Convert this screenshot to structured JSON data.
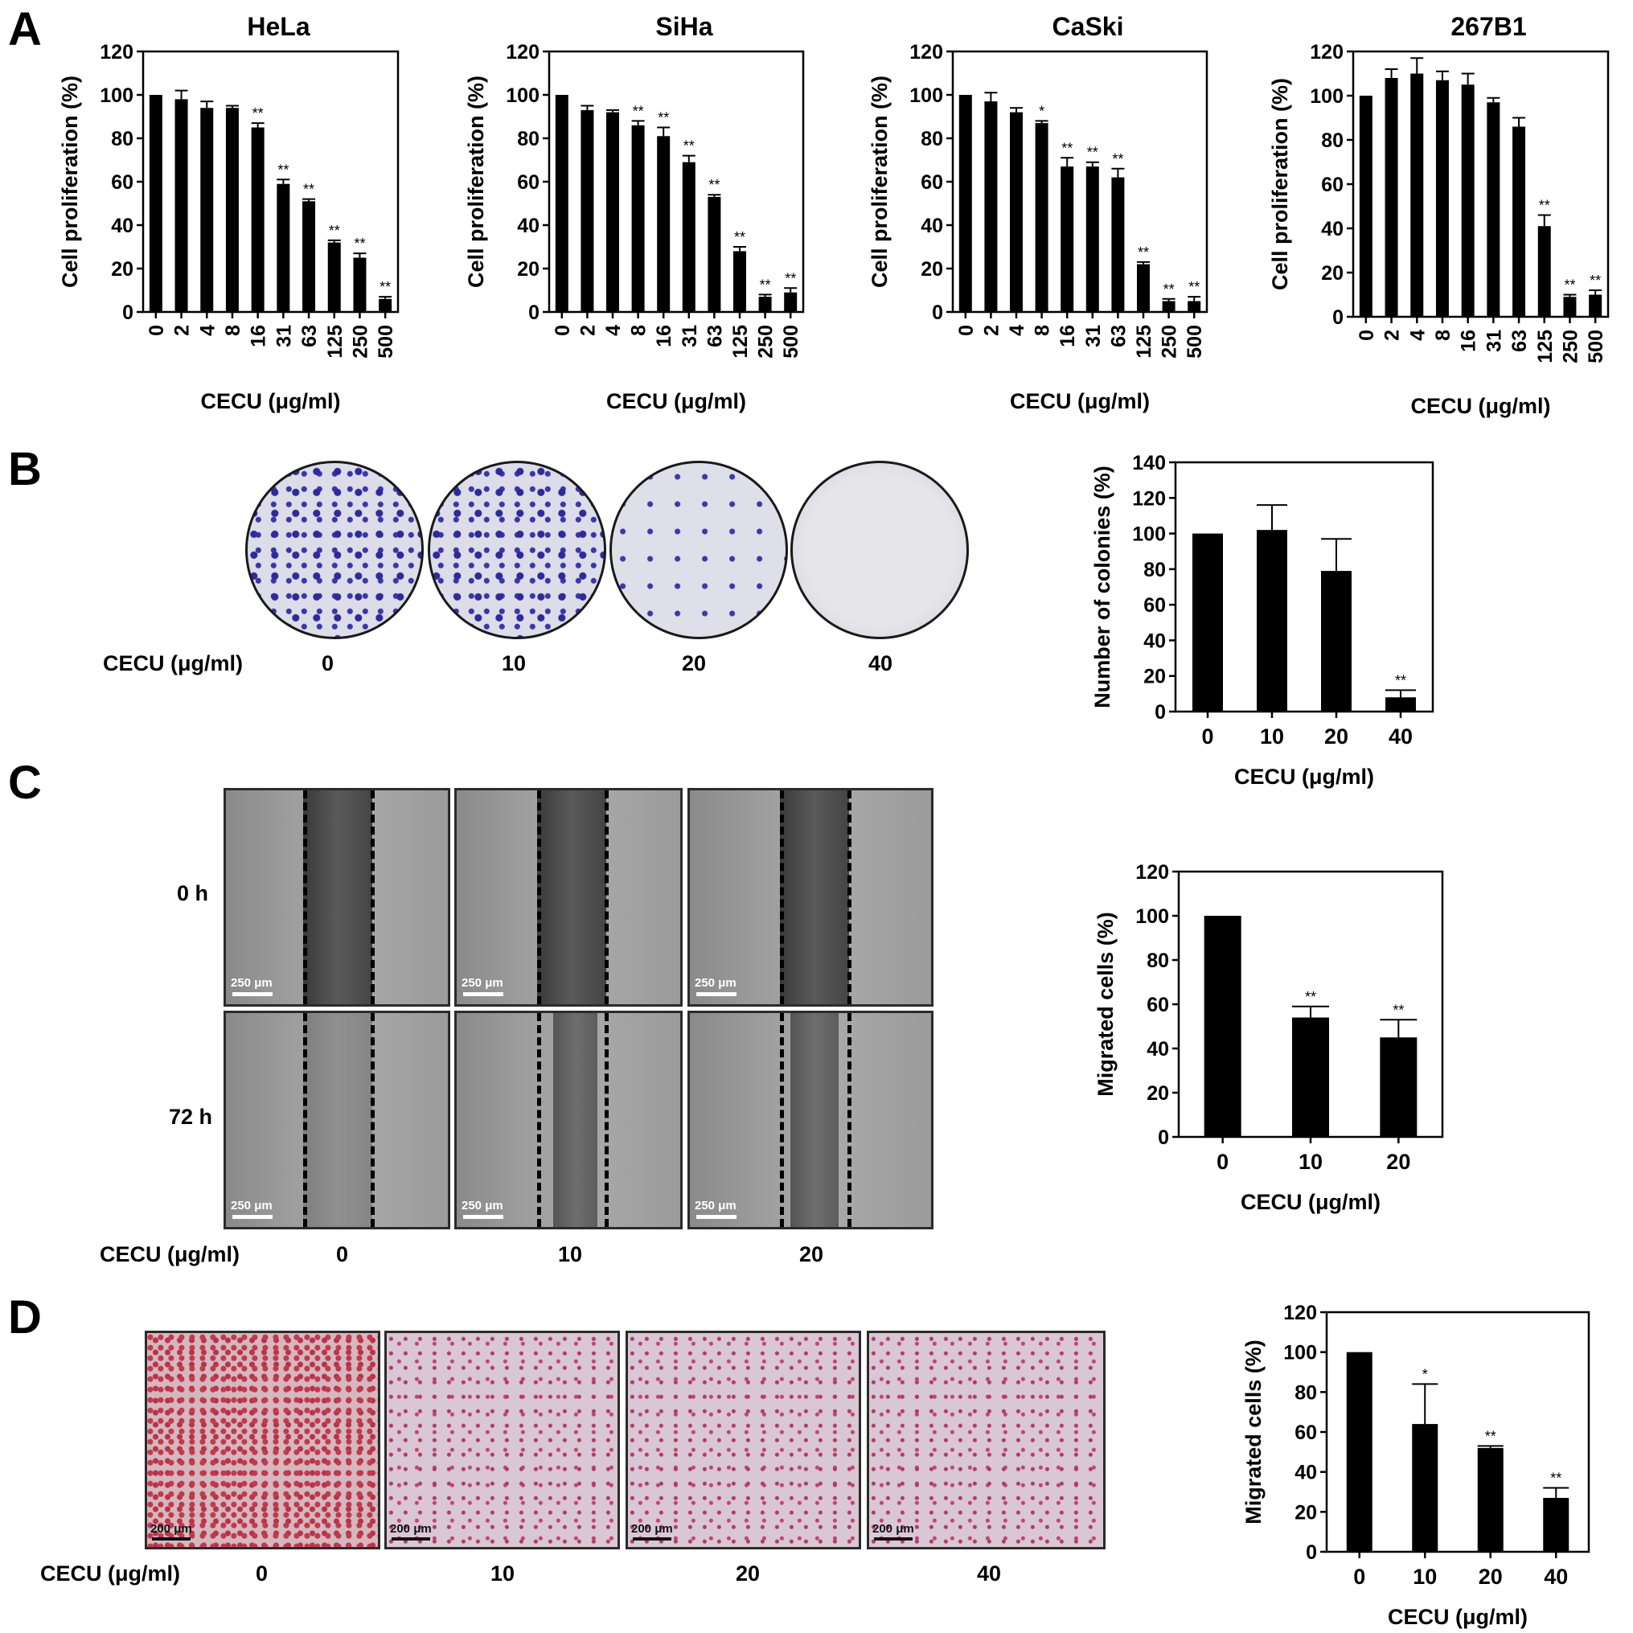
{
  "panels": {
    "a": "A",
    "b": "B",
    "c": "C",
    "d": "D"
  },
  "common": {
    "xlabel": "CECU (μg/ml)"
  },
  "panel_b": {
    "dose_label": "CECU (μg/ml)",
    "doses": [
      "0",
      "10",
      "20",
      "40"
    ]
  },
  "panel_c": {
    "row_labels": [
      "0 h",
      "72 h"
    ],
    "dose_label": "CECU (μg/ml)",
    "doses": [
      "0",
      "10",
      "20"
    ],
    "scale": "250 μm"
  },
  "panel_d": {
    "dose_label": "CECU (μg/ml)",
    "doses": [
      "0",
      "10",
      "20",
      "40"
    ],
    "scale": "200 μm"
  },
  "chart_data": [
    {
      "id": "hela",
      "type": "bar",
      "title": "HeLa",
      "xlabel": "CECU (μg/ml)",
      "ylabel": "Cell proliferation (%)",
      "categories": [
        "0",
        "2",
        "4",
        "8",
        "16",
        "31",
        "63",
        "125",
        "250",
        "500"
      ],
      "values": [
        100,
        98,
        94,
        94,
        85,
        59,
        51,
        32,
        25,
        6
      ],
      "errors": [
        0,
        4,
        3,
        1,
        2,
        2,
        1,
        1,
        2,
        1
      ],
      "sig": [
        "",
        "",
        "",
        "",
        "**",
        "**",
        "**",
        "**",
        "**",
        "**"
      ],
      "ylim": [
        0,
        120
      ]
    },
    {
      "id": "siha",
      "type": "bar",
      "title": "SiHa",
      "xlabel": "CECU (μg/ml)",
      "ylabel": "Cell proliferation (%)",
      "categories": [
        "0",
        "2",
        "4",
        "8",
        "16",
        "31",
        "63",
        "125",
        "250",
        "500"
      ],
      "values": [
        100,
        93,
        92,
        86,
        81,
        69,
        53,
        28,
        7,
        9
      ],
      "errors": [
        0,
        2,
        1,
        2,
        4,
        3,
        1,
        2,
        1,
        2
      ],
      "sig": [
        "",
        "",
        "",
        "**",
        "**",
        "**",
        "**",
        "**",
        "**",
        "**"
      ],
      "ylim": [
        0,
        120
      ]
    },
    {
      "id": "caski",
      "type": "bar",
      "title": "CaSki",
      "xlabel": "CECU (μg/ml)",
      "ylabel": "Cell proliferation (%)",
      "categories": [
        "0",
        "2",
        "4",
        "8",
        "16",
        "31",
        "63",
        "125",
        "250",
        "500"
      ],
      "values": [
        100,
        97,
        92,
        87,
        67,
        67,
        62,
        22,
        5,
        5
      ],
      "errors": [
        0,
        4,
        2,
        1,
        4,
        2,
        4,
        1,
        1,
        2
      ],
      "sig": [
        "",
        "",
        "",
        "*",
        "**",
        "**",
        "**",
        "**",
        "**",
        "**"
      ],
      "ylim": [
        0,
        120
      ]
    },
    {
      "id": "b1",
      "type": "bar",
      "title": "267B1",
      "xlabel": "CECU (μg/ml)",
      "ylabel": "Cell proliferation (%)",
      "categories": [
        "0",
        "2",
        "4",
        "8",
        "16",
        "31",
        "63",
        "125",
        "250",
        "500"
      ],
      "values": [
        100,
        108,
        110,
        107,
        105,
        97,
        86,
        41,
        9,
        10
      ],
      "errors": [
        0,
        4,
        7,
        4,
        5,
        2,
        4,
        5,
        1,
        2
      ],
      "sig": [
        "",
        "",
        "",
        "",
        "",
        "",
        "",
        "**",
        "**",
        "**"
      ],
      "ylim": [
        0,
        120
      ]
    },
    {
      "id": "colonies",
      "type": "bar",
      "title": "",
      "xlabel": "CECU (μg/ml)",
      "ylabel": "Number of colonies (%)",
      "categories": [
        "0",
        "10",
        "20",
        "40"
      ],
      "values": [
        100,
        102,
        79,
        8
      ],
      "errors": [
        0,
        14,
        18,
        4
      ],
      "sig": [
        "",
        "",
        "",
        "**"
      ],
      "ylim": [
        0,
        140
      ]
    },
    {
      "id": "wound",
      "type": "bar",
      "title": "",
      "xlabel": "CECU (μg/ml)",
      "ylabel": "Migrated cells (%)",
      "categories": [
        "0",
        "10",
        "20"
      ],
      "values": [
        100,
        54,
        45
      ],
      "errors": [
        0,
        5,
        8
      ],
      "sig": [
        "",
        "**",
        "**"
      ],
      "ylim": [
        0,
        120
      ]
    },
    {
      "id": "transwell",
      "type": "bar",
      "title": "",
      "xlabel": "CECU (μg/ml)",
      "ylabel": "Migrated cells (%)",
      "categories": [
        "0",
        "10",
        "20",
        "40"
      ],
      "values": [
        100,
        64,
        52,
        27
      ],
      "errors": [
        0,
        20,
        1,
        5
      ],
      "sig": [
        "",
        "*",
        "**",
        "**"
      ],
      "ylim": [
        0,
        120
      ]
    }
  ]
}
